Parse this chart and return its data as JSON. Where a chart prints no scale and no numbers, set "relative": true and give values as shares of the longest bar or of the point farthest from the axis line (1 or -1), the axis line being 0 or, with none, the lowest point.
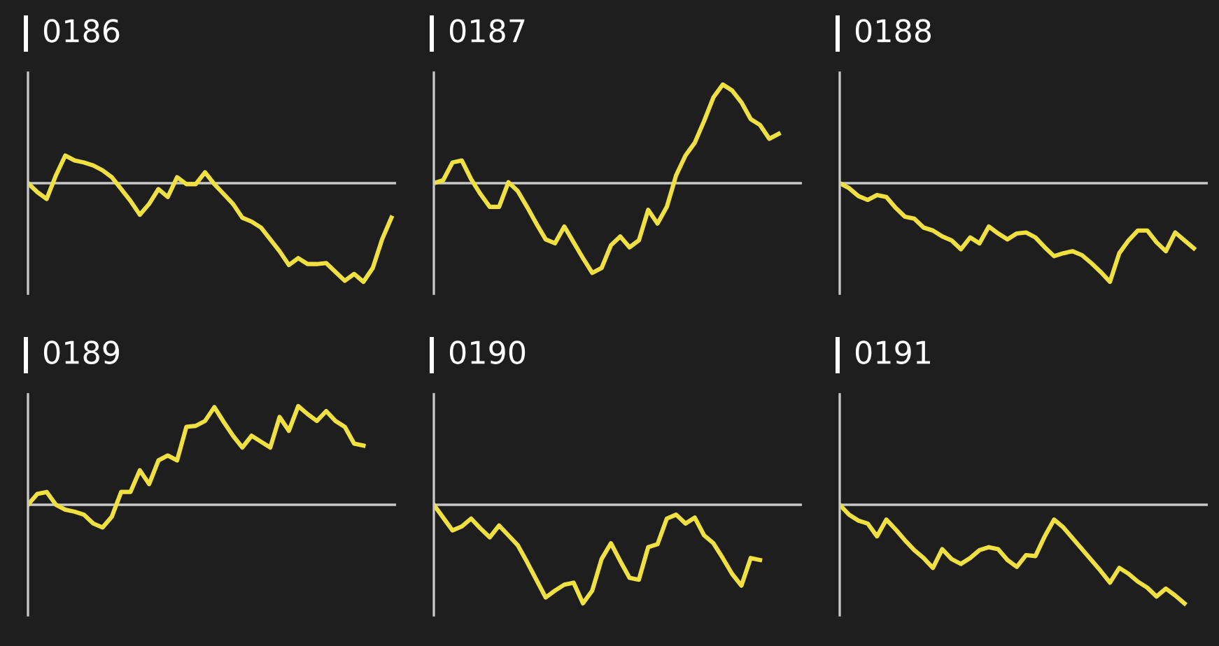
{
  "chart_data": [
    {
      "type": "line",
      "title": "0186",
      "relative": true,
      "categories": [
        null,
        null,
        null,
        null,
        null,
        null,
        null,
        null,
        null,
        null,
        null,
        null,
        null,
        null,
        null,
        null,
        null,
        null,
        null,
        null,
        null,
        null,
        null,
        null,
        null,
        null,
        null,
        null,
        null,
        null,
        null,
        null,
        null,
        null,
        null,
        null,
        null,
        null,
        null,
        null
      ],
      "series": [
        {
          "color": "#f0e040",
          "values": [
            0,
            -0.09,
            -0.16,
            0.08,
            0.28,
            0.23,
            0.21,
            0.18,
            0.13,
            0.06,
            -0.06,
            -0.18,
            -0.32,
            -0.21,
            -0.06,
            -0.14,
            0.06,
            -0.01,
            -0.01,
            0.11,
            -0.01,
            -0.11,
            -0.21,
            -0.35,
            -0.39,
            -0.45,
            -0.57,
            -0.69,
            -0.83,
            -0.76,
            -0.82,
            -0.82,
            -0.81,
            -0.9,
            -0.99,
            -0.92,
            -1,
            -0.86,
            -0.57,
            -0.35
          ]
        }
      ]
    },
    {
      "type": "line",
      "title": "0187",
      "relative": true,
      "categories": [
        null,
        null,
        null,
        null,
        null,
        null,
        null,
        null,
        null,
        null,
        null,
        null,
        null,
        null,
        null,
        null,
        null,
        null,
        null,
        null,
        null,
        null,
        null,
        null,
        null,
        null,
        null,
        null,
        null,
        null,
        null,
        null,
        null,
        null,
        null,
        null,
        null,
        null,
        null,
        null
      ],
      "series": [
        {
          "color": "#f0e040",
          "values": [
            0,
            0.03,
            0.21,
            0.23,
            0.04,
            -0.11,
            -0.24,
            -0.24,
            0.01,
            -0.08,
            -0.24,
            -0.41,
            -0.57,
            -0.61,
            -0.44,
            -0.6,
            -0.76,
            -0.91,
            -0.86,
            -0.63,
            -0.54,
            -0.65,
            -0.58,
            -0.27,
            -0.41,
            -0.24,
            0.08,
            0.28,
            0.41,
            0.63,
            0.87,
            1,
            0.94,
            0.82,
            0.65,
            0.59,
            0.45,
            0.5,
            null,
            null
          ]
        }
      ]
    },
    {
      "type": "line",
      "title": "0188",
      "relative": true,
      "categories": [
        null,
        null,
        null,
        null,
        null,
        null,
        null,
        null,
        null,
        null,
        null,
        null,
        null,
        null,
        null,
        null,
        null,
        null,
        null,
        null,
        null,
        null,
        null,
        null,
        null,
        null,
        null,
        null,
        null,
        null,
        null,
        null,
        null,
        null,
        null,
        null,
        null,
        null,
        null,
        null
      ],
      "series": [
        {
          "color": "#f0e040",
          "values": [
            0,
            -0.05,
            -0.13,
            -0.17,
            -0.12,
            -0.14,
            -0.25,
            -0.34,
            -0.36,
            -0.45,
            -0.48,
            -0.54,
            -0.58,
            -0.67,
            -0.55,
            -0.61,
            -0.44,
            -0.51,
            -0.57,
            -0.51,
            -0.5,
            -0.55,
            -0.65,
            -0.74,
            -0.71,
            -0.69,
            -0.73,
            -0.81,
            -0.9,
            -1,
            -0.71,
            -0.58,
            -0.48,
            -0.48,
            -0.6,
            -0.69,
            -0.5,
            -0.58,
            -0.66,
            null
          ]
        }
      ]
    },
    {
      "type": "line",
      "title": "0189",
      "relative": true,
      "categories": [
        null,
        null,
        null,
        null,
        null,
        null,
        null,
        null,
        null,
        null,
        null,
        null,
        null,
        null,
        null,
        null,
        null,
        null,
        null,
        null,
        null,
        null,
        null,
        null,
        null,
        null,
        null,
        null,
        null,
        null,
        null,
        null,
        null,
        null,
        null,
        null,
        null,
        null,
        null,
        null
      ],
      "series": [
        {
          "color": "#f0e040",
          "values": [
            0,
            0.11,
            0.13,
            0,
            -0.05,
            -0.07,
            -0.1,
            -0.19,
            -0.23,
            -0.12,
            0.13,
            0.13,
            0.35,
            0.21,
            0.45,
            0.5,
            0.45,
            0.79,
            0.8,
            0.85,
            0.99,
            0.84,
            0.7,
            0.58,
            0.7,
            0.64,
            0.58,
            0.89,
            0.75,
            1,
            0.92,
            0.85,
            0.95,
            0.85,
            0.79,
            0.62,
            0.6,
            null,
            null,
            null
          ]
        }
      ]
    },
    {
      "type": "line",
      "title": "0190",
      "relative": true,
      "categories": [
        null,
        null,
        null,
        null,
        null,
        null,
        null,
        null,
        null,
        null,
        null,
        null,
        null,
        null,
        null,
        null,
        null,
        null,
        null,
        null,
        null,
        null,
        null,
        null,
        null,
        null,
        null,
        null,
        null,
        null,
        null,
        null,
        null,
        null,
        null,
        null,
        null,
        null,
        null,
        null
      ],
      "series": [
        {
          "color": "#f0e040",
          "values": [
            0,
            -0.13,
            -0.26,
            -0.22,
            -0.14,
            -0.24,
            -0.33,
            -0.21,
            -0.31,
            -0.41,
            -0.58,
            -0.76,
            -0.94,
            -0.87,
            -0.81,
            -0.79,
            -1,
            -0.87,
            -0.55,
            -0.39,
            -0.57,
            -0.74,
            -0.76,
            -0.43,
            -0.4,
            -0.14,
            -0.1,
            -0.19,
            -0.13,
            -0.31,
            -0.39,
            -0.54,
            -0.7,
            -0.82,
            -0.54,
            -0.56,
            null,
            null,
            null,
            null
          ]
        }
      ]
    },
    {
      "type": "line",
      "title": "0191",
      "relative": true,
      "categories": [
        null,
        null,
        null,
        null,
        null,
        null,
        null,
        null,
        null,
        null,
        null,
        null,
        null,
        null,
        null,
        null,
        null,
        null,
        null,
        null,
        null,
        null,
        null,
        null,
        null,
        null,
        null,
        null,
        null,
        null,
        null,
        null,
        null,
        null,
        null,
        null,
        null,
        null,
        null,
        null
      ],
      "series": [
        {
          "color": "#f0e040",
          "values": [
            0,
            -0.1,
            -0.16,
            -0.19,
            -0.32,
            -0.15,
            -0.25,
            -0.36,
            -0.46,
            -0.54,
            -0.64,
            -0.45,
            -0.55,
            -0.6,
            -0.54,
            -0.46,
            -0.43,
            -0.45,
            -0.56,
            -0.63,
            -0.51,
            -0.52,
            -0.32,
            -0.15,
            -0.23,
            -0.34,
            -0.45,
            -0.56,
            -0.67,
            -0.79,
            -0.64,
            -0.7,
            -0.78,
            -0.84,
            -0.93,
            -0.85,
            -0.92,
            -1,
            null,
            null
          ]
        }
      ]
    }
  ]
}
